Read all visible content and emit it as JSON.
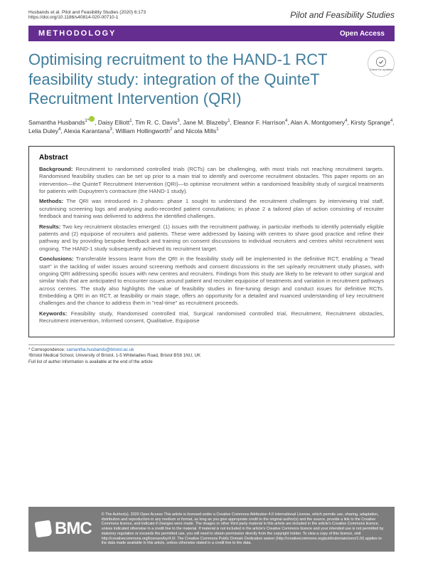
{
  "header": {
    "citation_line": "Husbands et al. Pilot and Feasibility Studies       (2020) 6:173",
    "doi": "https://doi.org/10.1186/s40814-020-00710-1",
    "journal": "Pilot and Feasibility Studies"
  },
  "bar": {
    "left": "METHODOLOGY",
    "right": "Open Access"
  },
  "title": "Optimising recruitment to the HAND-1 RCT feasibility study: integration of the QuinteT Recruitment Intervention (QRI)",
  "check": {
    "label": "Check for updates"
  },
  "authors_html": "Samantha Husbands<sup>1*</sup><span class='orcid'></span>, Daisy Elliott<sup>1</sup>, Tim R. C. Davis<sup>3</sup>, Jane M. Blazeby<sup>1</sup>, Eleanor F. Harrison<sup>4</sup>, Alan A. Montgomery<sup>4</sup>, Kirsty Sprange<sup>4</sup>, Lelia Duley<sup>4</sup>, Alexia Karantana<sup>3</sup>, William Hollingworth<sup>2</sup> and Nicola Mills<sup>1</sup>",
  "abstract": {
    "title": "Abstract",
    "background_label": "Background:",
    "background": " Recruitment to randomised controlled trials (RCTs) can be challenging, with most trials not reaching recruitment targets. Randomised feasibility studies can be set up prior to a main trial to identify and overcome recruitment obstacles. This paper reports on an intervention—the QuinteT Recruitment Intervention (QRI)—to optimise recruitment within a randomised feasibility study of surgical treatments for patients with Dupuytren's contracture (the HAND-1 study).",
    "methods_label": "Methods:",
    "methods": " The QRI was introduced in 2-phases: phase 1 sought to understand the recruitment challenges by interviewing trial staff, scrutinising screening logs and analysing audio-recorded patient consultations; in phase 2 a tailored plan of action consisting of recruiter feedback and training was delivered to address the identified challenges.",
    "results_label": "Results:",
    "results": " Two key recruitment obstacles emerged: (1) issues with the recruitment pathway, in particular methods to identify potentially eligible patients and (2) equipoise of recruiters and patients. These were addressed by liaising with centres to share good practice and refine their pathway and by providing bespoke feedback and training on consent discussions to individual recruiters and centres whilst recruitment was ongoing. The HAND-1 study subsequently achieved its recruitment target.",
    "conclusions_label": "Conclusions:",
    "conclusions": " Transferable lessons learnt from the QRI in the feasibility study will be implemented in the definitive RCT, enabling a \"head start\" in the tackling of wider issues around screening methods and consent discussions in the set up/early recruitment study phases, with ongoing QRI addressing specific issues with new centres and recruiters. Findings from this study are likely to be relevant to other surgical and similar trials that are anticipated to encounter issues around patient and recruiter equipoise of treatments and variation in recruitment pathways across centres. The study also highlights the value of feasibility studies in fine-tuning design and conduct issues for definitive RCTs. Embedding a QRI in an RCT, at feasibility or main stage, offers an opportunity for a detailed and nuanced understanding of key recruitment challenges and the chance to address them in \"real-time\" as recruitment proceeds.",
    "keywords_label": "Keywords:",
    "keywords": " Feasibility study, Randomised controlled trial, Surgical randomised controlled trial, Recruitment, Recruitment obstacles, Recruitment intervention, Informed consent, Qualitative, Equipoise"
  },
  "correspondence": {
    "star": "* Correspondence:",
    "email": "samantha.husbands@bristol.ac.uk",
    "affil": "¹Bristol Medical School, University of Bristol, 1-5 Whiteladies Road, Bristol BS8 1NU, UK",
    "note": "Full list of author information is available at the end of the article"
  },
  "footer": {
    "logo": "BMC",
    "text": "© The Author(s). 2020 Open Access This article is licensed under a Creative Commons Attribution 4.0 International License, which permits use, sharing, adaptation, distribution and reproduction in any medium or format, as long as you give appropriate credit to the original author(s) and the source, provide a link to the Creative Commons licence, and indicate if changes were made. The images or other third party material in this article are included in the article's Creative Commons licence, unless indicated otherwise in a credit line to the material. If material is not included in the article's Creative Commons licence and your intended use is not permitted by statutory regulation or exceeds the permitted use, you will need to obtain permission directly from the copyright holder. To view a copy of this licence, visit http://creativecommons.org/licenses/by/4.0/. The Creative Commons Public Domain Dedication waiver (http://creativecommons.org/publicdomain/zero/1.0/) applies to the data made available in this article, unless otherwise stated in a credit line to the data."
  },
  "colors": {
    "bar_bg": "#662d91",
    "title_color": "#3f7d9c",
    "footer_bg": "#7d7d7d"
  }
}
